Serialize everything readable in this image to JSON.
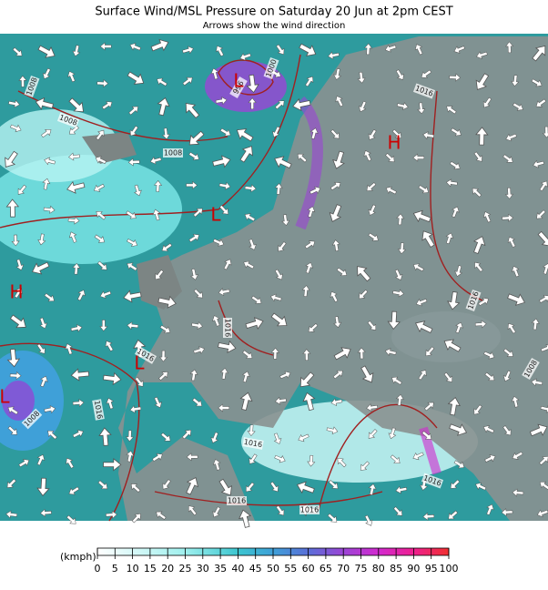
{
  "header": {
    "title": "Surface Wind/MSL Pressure on Saturday 20 Jun at 2pm CEST",
    "subtitle": "Arrows show the wind direction"
  },
  "map": {
    "isobar_labels": [
      "1008",
      "1008",
      "1008",
      "1000",
      "996",
      "1016",
      "1016",
      "1016",
      "1016",
      "1008",
      "1016",
      "1016",
      "1016",
      "1016",
      "1016",
      "1008"
    ],
    "pressure_centers": [
      "H",
      "L",
      "L",
      "L",
      "L",
      "H"
    ]
  },
  "legend": {
    "unit": "(kmph)",
    "ticks": [
      0,
      5,
      10,
      15,
      20,
      25,
      30,
      35,
      40,
      45,
      50,
      55,
      60,
      65,
      70,
      75,
      80,
      85,
      90,
      95,
      100
    ]
  }
}
